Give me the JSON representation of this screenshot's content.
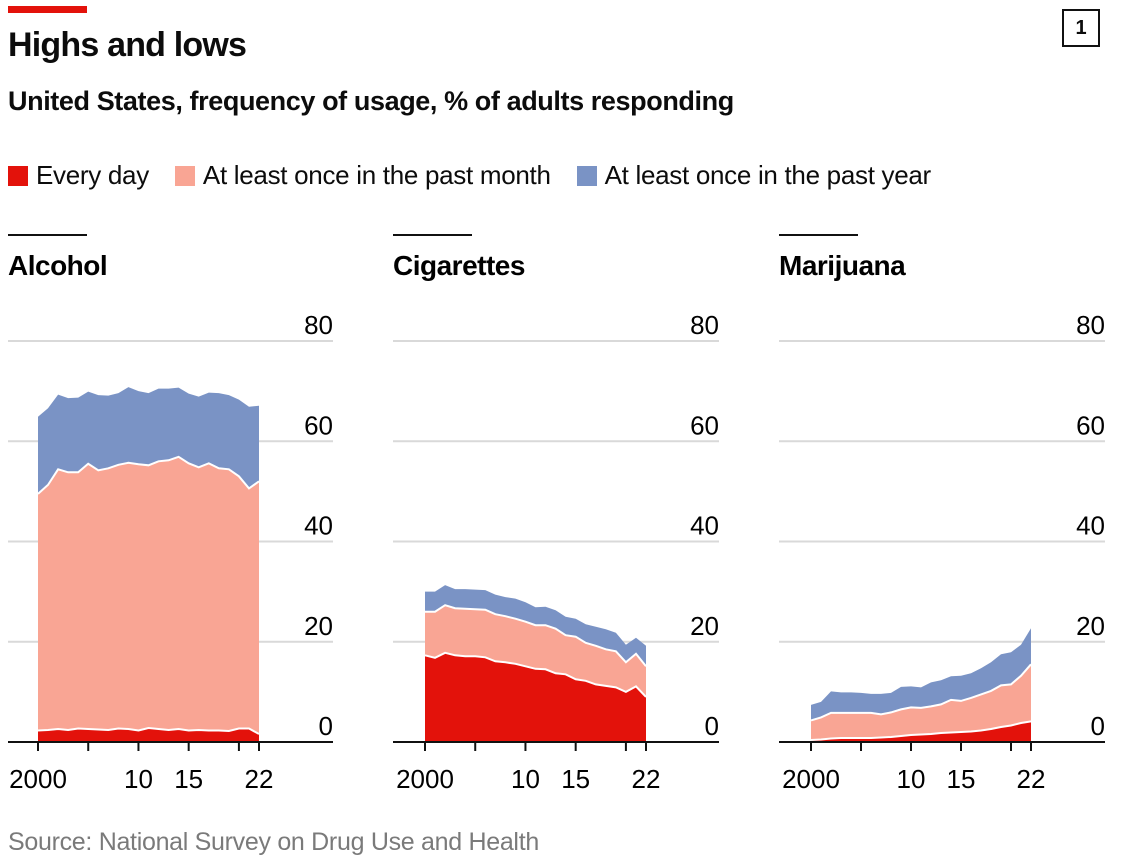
{
  "header": {
    "title": "Highs and lows",
    "subtitle": "United States, frequency of usage, % of adults responding",
    "badge": "1"
  },
  "source": "Source: National Survey on Drug Use and Health",
  "colors": {
    "daily": "#E3120B",
    "month": "#F9A594",
    "year": "#7A93C5"
  },
  "chart_data": [
    {
      "type": "area",
      "title": "Alcohol",
      "x": [
        2000,
        2001,
        2002,
        2003,
        2004,
        2005,
        2006,
        2007,
        2008,
        2009,
        2010,
        2011,
        2012,
        2013,
        2014,
        2015,
        2016,
        2017,
        2018,
        2019,
        2020,
        2021,
        2022
      ],
      "xticks": [
        {
          "value": 2000,
          "label": "2000"
        },
        {
          "value": 2010,
          "label": "10"
        },
        {
          "value": 2015,
          "label": "15"
        },
        {
          "value": 2022,
          "label": "22"
        }
      ],
      "ylim": [
        0,
        80
      ],
      "yticks": [
        0,
        20,
        40,
        60,
        80
      ],
      "legend": [
        "Every day",
        "At least once in the past month",
        "At least once in the past year"
      ],
      "series": [
        {
          "name": "Every day",
          "values": [
            2.3,
            2.4,
            2.6,
            2.4,
            2.7,
            2.6,
            2.5,
            2.4,
            2.7,
            2.6,
            2.3,
            2.8,
            2.6,
            2.4,
            2.6,
            2.3,
            2.4,
            2.3,
            2.3,
            2.2,
            2.7,
            2.7,
            1.6
          ]
        },
        {
          "name": "At least once in the past month",
          "values": [
            49.5,
            51.3,
            54.4,
            53.8,
            53.8,
            55.5,
            54.2,
            54.6,
            55.3,
            55.7,
            55.4,
            55.2,
            56.0,
            56.2,
            56.9,
            55.6,
            54.8,
            55.6,
            54.6,
            54.4,
            53.0,
            50.6,
            52.0
          ]
        },
        {
          "name": "At least once in the past year",
          "values": [
            64.9,
            66.6,
            69.3,
            68.6,
            68.7,
            69.9,
            69.2,
            69.1,
            69.6,
            70.8,
            70.0,
            69.6,
            70.5,
            70.5,
            70.7,
            69.5,
            68.9,
            69.7,
            69.6,
            69.2,
            68.3,
            66.9,
            67.1
          ]
        }
      ]
    },
    {
      "type": "area",
      "title": "Cigarettes",
      "x": [
        2000,
        2001,
        2002,
        2003,
        2004,
        2005,
        2006,
        2007,
        2008,
        2009,
        2010,
        2011,
        2012,
        2013,
        2014,
        2015,
        2016,
        2017,
        2018,
        2019,
        2020,
        2021,
        2022
      ],
      "xticks": [
        {
          "value": 2000,
          "label": "2000"
        },
        {
          "value": 2010,
          "label": "10"
        },
        {
          "value": 2015,
          "label": "15"
        },
        {
          "value": 2022,
          "label": "22"
        }
      ],
      "ylim": [
        0,
        80
      ],
      "yticks": [
        0,
        20,
        40,
        60,
        80
      ],
      "series": [
        {
          "name": "Every day",
          "values": [
            17.3,
            16.8,
            17.8,
            17.3,
            17.1,
            17.1,
            16.9,
            16.1,
            15.9,
            15.6,
            15.1,
            14.6,
            14.5,
            13.7,
            13.5,
            12.5,
            12.2,
            11.5,
            11.2,
            10.9,
            10.0,
            11.1,
            9.0
          ]
        },
        {
          "name": "At least once in the past month",
          "values": [
            26.0,
            26.0,
            27.3,
            26.7,
            26.6,
            26.5,
            26.4,
            25.5,
            25.1,
            24.6,
            24.0,
            23.3,
            23.3,
            22.6,
            21.3,
            21.0,
            19.8,
            19.2,
            18.5,
            18.1,
            15.9,
            17.6,
            15.1
          ]
        },
        {
          "name": "At least once in the past year",
          "values": [
            30.0,
            30.0,
            31.3,
            30.5,
            30.5,
            30.4,
            30.3,
            29.4,
            28.9,
            28.6,
            27.9,
            26.9,
            27.0,
            26.3,
            25.0,
            24.6,
            23.5,
            23.0,
            22.5,
            21.8,
            19.4,
            20.8,
            19.2
          ]
        }
      ]
    },
    {
      "type": "area",
      "title": "Marijuana",
      "x": [
        2000,
        2001,
        2002,
        2003,
        2004,
        2005,
        2006,
        2007,
        2008,
        2009,
        2010,
        2011,
        2012,
        2013,
        2014,
        2015,
        2016,
        2017,
        2018,
        2019,
        2020,
        2021,
        2022
      ],
      "xticks": [
        {
          "value": 2000,
          "label": "2000"
        },
        {
          "value": 2010,
          "label": "10"
        },
        {
          "value": 2015,
          "label": "15"
        },
        {
          "value": 2022,
          "label": "22"
        }
      ],
      "ylim": [
        0,
        80
      ],
      "yticks": [
        0,
        20,
        40,
        60,
        80
      ],
      "series": [
        {
          "name": "Every day",
          "values": [
            0.4,
            0.5,
            0.7,
            0.8,
            0.8,
            0.8,
            0.8,
            0.9,
            1.0,
            1.2,
            1.4,
            1.5,
            1.6,
            1.8,
            1.9,
            2.0,
            2.1,
            2.3,
            2.6,
            3.0,
            3.3,
            3.8,
            4.1
          ]
        },
        {
          "name": "At least once in the past month",
          "values": [
            4.3,
            4.9,
            5.8,
            5.8,
            5.8,
            5.8,
            5.8,
            5.5,
            5.9,
            6.5,
            6.9,
            6.8,
            7.1,
            7.5,
            8.4,
            8.2,
            8.8,
            9.5,
            10.2,
            11.3,
            11.5,
            13.2,
            15.5
          ]
        },
        {
          "name": "At least once in the past year",
          "values": [
            7.4,
            8.0,
            10.1,
            9.9,
            9.9,
            9.8,
            9.6,
            9.6,
            9.8,
            11.0,
            11.1,
            10.9,
            11.9,
            12.3,
            13.1,
            13.2,
            13.7,
            14.7,
            15.9,
            17.5,
            17.9,
            19.4,
            22.7
          ]
        }
      ]
    }
  ]
}
